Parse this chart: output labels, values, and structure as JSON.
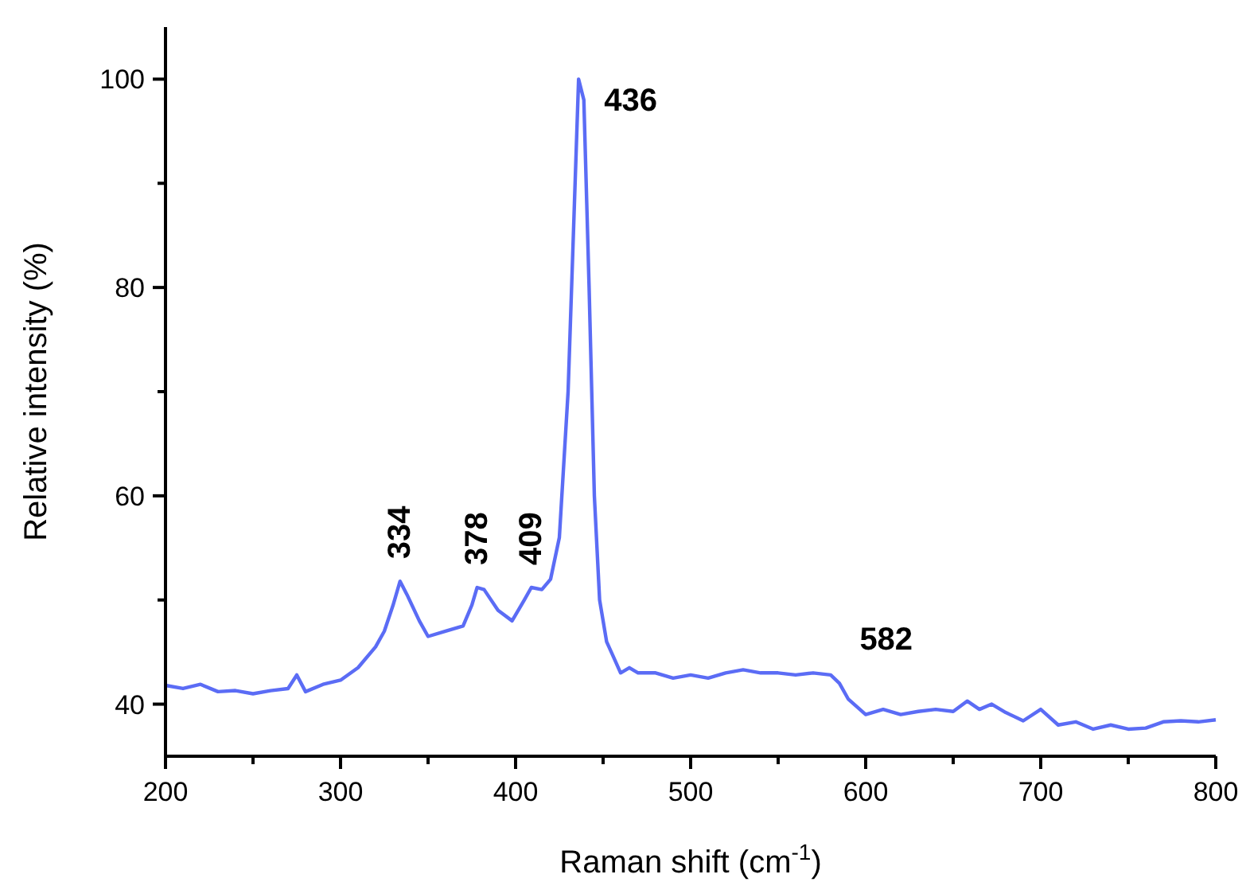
{
  "chart_data": {
    "type": "line",
    "xlabel": "Raman shift (cm$^{-1}$)",
    "ylabel": "Relative intensity (%)",
    "xlim": [
      200,
      800
    ],
    "xticks": [
      200,
      {
        "value": 250,
        "label": null
      },
      300,
      {
        "value": 350,
        "label": null
      },
      400,
      {
        "value": 450,
        "label": null
      },
      500,
      {
        "value": 550,
        "label": null
      },
      600,
      {
        "value": 650,
        "label": null
      },
      700,
      {
        "value": 750,
        "label": null
      },
      800
    ],
    "ylim": [
      35,
      105
    ],
    "yticks": [
      40,
      {
        "value": 50,
        "label": null
      },
      60,
      {
        "value": 70,
        "label": null
      },
      80,
      {
        "value": 90,
        "label": null
      },
      100
    ],
    "grid": false,
    "marker": "none",
    "line_style": "solid",
    "series": [
      {
        "color": "#5b6cf5",
        "x": [
          200,
          210,
          220,
          230,
          240,
          250,
          260,
          270,
          275,
          280,
          290,
          300,
          310,
          320,
          325,
          330,
          334,
          338,
          345,
          350,
          360,
          370,
          375,
          378,
          382,
          390,
          398,
          405,
          409,
          415,
          420,
          425,
          430,
          433,
          436,
          439,
          442,
          445,
          448,
          452,
          456,
          460,
          465,
          470,
          480,
          490,
          500,
          510,
          520,
          530,
          540,
          550,
          560,
          570,
          580,
          585,
          590,
          600,
          610,
          620,
          630,
          640,
          650,
          658,
          665,
          672,
          680,
          690,
          700,
          710,
          720,
          730,
          740,
          750,
          760,
          770,
          780,
          790,
          800
        ],
        "values": [
          41.8,
          41.5,
          41.9,
          41.2,
          41.3,
          41.0,
          41.3,
          41.5,
          42.8,
          41.2,
          41.9,
          42.3,
          43.5,
          45.5,
          47,
          49.5,
          51.8,
          50.5,
          48,
          46.5,
          47,
          47.5,
          49.5,
          51.2,
          51,
          49,
          48,
          50,
          51.2,
          51,
          52,
          56,
          70,
          85,
          100,
          98,
          80,
          60,
          50,
          46,
          44.5,
          43,
          43.5,
          43,
          43,
          42.5,
          42.8,
          42.5,
          43,
          43.3,
          43,
          43,
          42.8,
          43,
          42.8,
          42,
          40.5,
          39,
          39.5,
          39,
          39.3,
          39.5,
          39.3,
          40.3,
          39.5,
          40,
          39.2,
          38.4,
          39.5,
          38,
          38.3,
          37.6,
          38,
          37.6,
          37.7,
          38.3,
          38.4,
          38.3,
          38.5
        ]
      }
    ],
    "annotations": [
      {
        "text": "334",
        "x": 334,
        "y": 51.8
      },
      {
        "text": "378",
        "x": 378,
        "y": 51.2
      },
      {
        "text": "409",
        "x": 409,
        "y": 51.2
      },
      {
        "text": "436",
        "x": 436,
        "y": 100
      },
      {
        "text": "582",
        "x": 582,
        "y": 42.8
      }
    ]
  }
}
